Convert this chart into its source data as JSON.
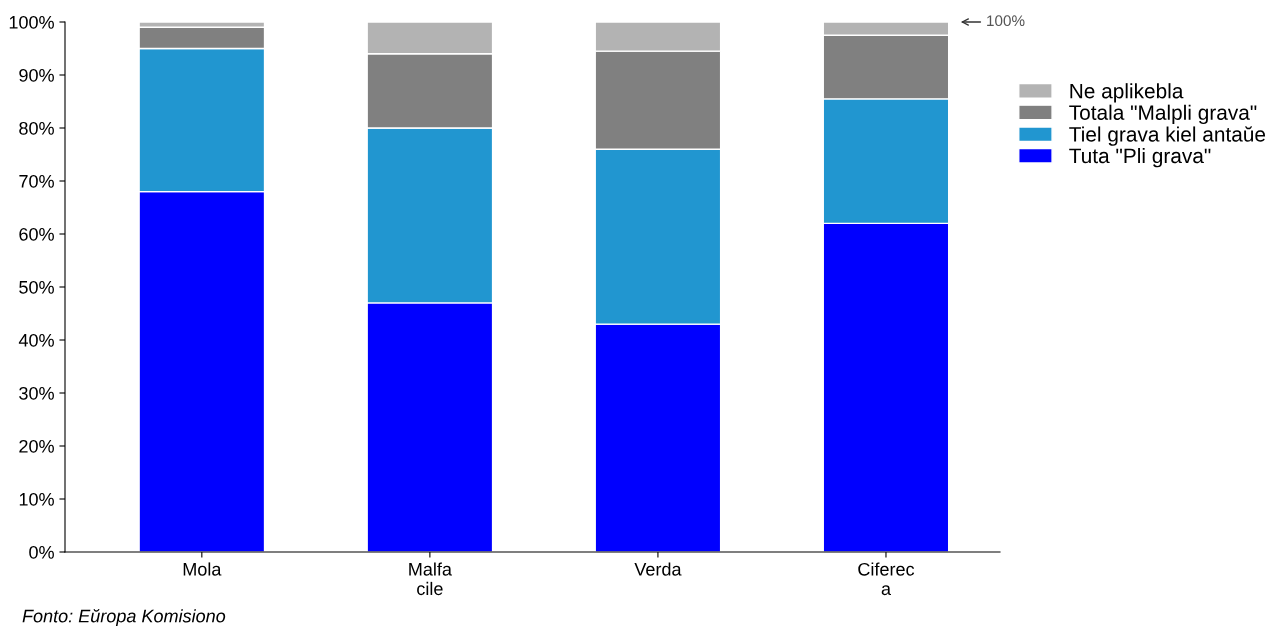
{
  "chart_data": {
    "type": "bar",
    "stacked": true,
    "categories": [
      "Mola",
      "Malfa\ncile",
      "Verda",
      "Ciferec\na"
    ],
    "series": [
      {
        "name": "Tuta \"Pli grava\"",
        "color": "#0000ff",
        "values": [
          68,
          47,
          43,
          62
        ]
      },
      {
        "name": "Tiel grava kiel antaŭe",
        "color": "#2196d0",
        "values": [
          27,
          33,
          33,
          23.5
        ]
      },
      {
        "name": "Totala \"Malpli grava\"",
        "color": "#808080",
        "values": [
          4,
          14,
          18.5,
          12
        ]
      },
      {
        "name": "Ne aplikebla",
        "color": "#b3b3b3",
        "values": [
          1,
          6,
          5.5,
          2.5
        ]
      }
    ],
    "ylim": [
      0,
      100
    ],
    "yticks": [
      {
        "value": 0,
        "label": "0%"
      },
      {
        "value": 10,
        "label": "10%"
      },
      {
        "value": 20,
        "label": "20%"
      },
      {
        "value": 30,
        "label": "30%"
      },
      {
        "value": 40,
        "label": "40%"
      },
      {
        "value": 50,
        "label": "50%"
      },
      {
        "value": 60,
        "label": "60%"
      },
      {
        "value": 70,
        "label": "70%"
      },
      {
        "value": 80,
        "label": "80%"
      },
      {
        "value": 90,
        "label": "90%"
      },
      {
        "value": 100,
        "label": "100%"
      }
    ],
    "grid": false,
    "legend": "right",
    "annotations": [
      "100%",
      "Fonto: Eŭropa Komisiono"
    ]
  }
}
